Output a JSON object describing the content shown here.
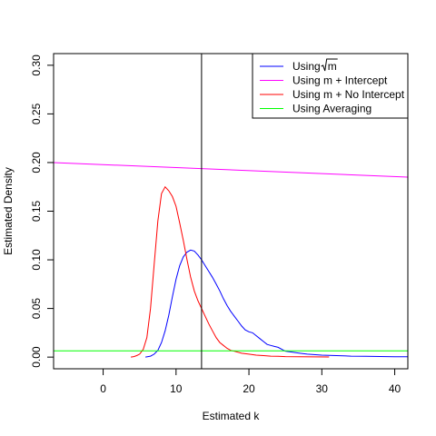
{
  "chart_data": {
    "type": "line",
    "title": "",
    "xlabel": "Estimated k",
    "ylabel": "Estimated Density",
    "xlim": [
      -6.8,
      41.8
    ],
    "ylim": [
      -0.012,
      0.312
    ],
    "xticks": [
      0,
      10,
      20,
      30,
      40
    ],
    "yticks": [
      0.0,
      0.05,
      0.1,
      0.15,
      0.2,
      0.25,
      0.3
    ],
    "ytick_labels": [
      "0.00",
      "0.05",
      "0.10",
      "0.15",
      "0.20",
      "0.25",
      "0.30"
    ],
    "grid": false,
    "legend_position": "top-right",
    "vline": {
      "x": 13.5,
      "color": "#000000"
    },
    "series": [
      {
        "name": "Using √m",
        "name_prefix": "Using ",
        "name_radical": "m",
        "color": "#0000ff",
        "x": [
          5.8,
          6.5,
          7.0,
          7.5,
          8.0,
          8.5,
          9.0,
          9.5,
          10.0,
          10.5,
          11.0,
          11.5,
          12.0,
          12.5,
          13.0,
          13.5,
          14.0,
          14.5,
          15.0,
          15.5,
          16.0,
          16.5,
          17.0,
          17.5,
          18.0,
          18.5,
          19.0,
          19.5,
          20.0,
          20.5,
          21.0,
          21.5,
          22.0,
          22.5,
          23.0,
          23.5,
          24.0,
          25.0,
          26.0,
          27.0,
          28.0,
          30.0,
          32.0,
          34.0,
          36.0,
          38.0,
          40.0,
          41.8
        ],
        "y": [
          0.0,
          0.001,
          0.003,
          0.007,
          0.015,
          0.027,
          0.043,
          0.062,
          0.08,
          0.094,
          0.103,
          0.108,
          0.11,
          0.109,
          0.105,
          0.1,
          0.094,
          0.088,
          0.082,
          0.075,
          0.068,
          0.06,
          0.053,
          0.047,
          0.042,
          0.037,
          0.032,
          0.028,
          0.026,
          0.025,
          0.022,
          0.019,
          0.016,
          0.013,
          0.012,
          0.011,
          0.01,
          0.006,
          0.005,
          0.004,
          0.003,
          0.002,
          0.0015,
          0.001,
          0.0008,
          0.0006,
          0.0004,
          0.0003
        ]
      },
      {
        "name": "Using m + Intercept",
        "color": "#ff00ff",
        "x": [
          -6.8,
          41.8
        ],
        "y": [
          0.2,
          0.185
        ]
      },
      {
        "name": "Using m + No Intercept",
        "color": "#ff0000",
        "x": [
          3.8,
          4.2,
          4.6,
          5.0,
          5.5,
          6.0,
          6.5,
          7.0,
          7.5,
          8.0,
          8.5,
          9.0,
          9.5,
          10.0,
          10.5,
          11.0,
          11.5,
          12.0,
          12.5,
          13.0,
          13.5,
          14.0,
          14.5,
          15.0,
          15.5,
          16.0,
          16.5,
          17.0,
          17.5,
          18.0,
          19.0,
          20.0,
          21.0,
          22.0,
          23.0,
          24.0,
          25.0,
          27.0,
          29.0,
          31.0
        ],
        "y": [
          0.0,
          0.0005,
          0.0015,
          0.003,
          0.008,
          0.02,
          0.05,
          0.095,
          0.14,
          0.168,
          0.175,
          0.171,
          0.165,
          0.155,
          0.138,
          0.12,
          0.1,
          0.082,
          0.068,
          0.058,
          0.05,
          0.042,
          0.034,
          0.027,
          0.02,
          0.015,
          0.012,
          0.009,
          0.007,
          0.006,
          0.004,
          0.003,
          0.002,
          0.0015,
          0.001,
          0.0008,
          0.0005,
          0.0003,
          0.0002,
          0.0001
        ]
      },
      {
        "name": "Using Averaging",
        "color": "#00ff00",
        "x": [
          -6.8,
          41.8
        ],
        "y": [
          0.0065,
          0.0065
        ]
      }
    ]
  }
}
